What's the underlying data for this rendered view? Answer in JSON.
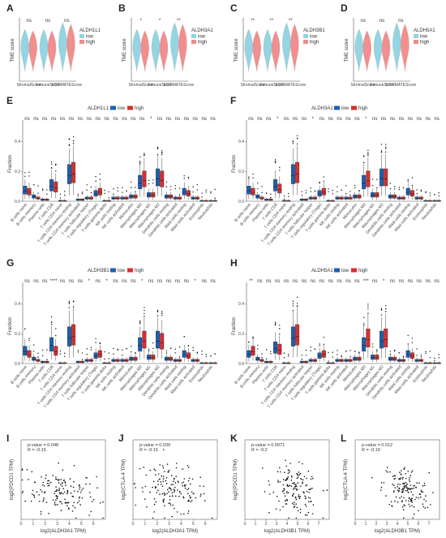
{
  "panel_letters": [
    "A",
    "B",
    "C",
    "D",
    "E",
    "F",
    "G",
    "H",
    "I",
    "J",
    "K",
    "L"
  ],
  "colors": {
    "low": "#8fd3e0",
    "high": "#f08a8a",
    "box_low": "#1f5fb0",
    "box_high": "#d62f2f",
    "point": "#111111"
  },
  "chart_data": [
    {
      "panel": "A",
      "type": "violin",
      "gene": "ALDH1L1",
      "ylabel": "TME score",
      "legend_title": "ALDH1L1",
      "legend_items": [
        "low",
        "high"
      ],
      "categories": [
        "StromalScore",
        "ImmuneScore",
        "ESTIMATEScore"
      ],
      "significance": [
        "ns",
        "ns",
        "ns"
      ]
    },
    {
      "panel": "B",
      "type": "violin",
      "gene": "ALDH3A1",
      "ylabel": "TME score",
      "legend_title": "ALDH3A1",
      "legend_items": [
        "low",
        "high"
      ],
      "categories": [
        "StromalScore",
        "ImmuneScore",
        "ESTIMATEScore"
      ],
      "significance": [
        "*",
        "*",
        "**"
      ]
    },
    {
      "panel": "C",
      "type": "violin",
      "gene": "ALDH3B1",
      "ylabel": "TME score",
      "legend_title": "ALDH3B1",
      "legend_items": [
        "low",
        "high"
      ],
      "categories": [
        "StromalScore",
        "ImmuneScore",
        "ESTIMATEScore"
      ],
      "significance": [
        "**",
        "**",
        "**"
      ]
    },
    {
      "panel": "D",
      "type": "violin",
      "gene": "ALDH5A1",
      "ylabel": "TME score",
      "legend_title": "ALDH5A1",
      "legend_items": [
        "low",
        "high"
      ],
      "categories": [
        "StromalScore",
        "ImmuneScore",
        "ESTIMATEScore"
      ],
      "significance": [
        "ns",
        "ns",
        "ns"
      ]
    },
    {
      "panel": "E",
      "type": "boxplot",
      "legend_title": "ALDH1L1",
      "legend_items": [
        "low",
        "high"
      ],
      "ylabel": "Fraction",
      "ylim": [
        0,
        0.5
      ],
      "yticks": [
        "0.0",
        "0.2",
        "0.4"
      ],
      "categories": [
        "B cells naive",
        "B cells memory",
        "Plasma cells",
        "T cells CD8",
        "T cells CD4 naive",
        "T cells CD4 memory resting",
        "T cells CD4 memory activated",
        "T cells follicular helper",
        "T cells regulatory (Tregs)",
        "T cells gamma delta",
        "NK cells resting",
        "NK cells activated",
        "Monocytes",
        "Macrophages M0",
        "Macrophages M1",
        "Macrophages M2",
        "Dendritic cells resting",
        "Dendritic cells activated",
        "Mast cells resting",
        "Mast cells activated",
        "Eosinophils",
        "Neutrophils"
      ],
      "significance": [
        "ns",
        "ns",
        "ns",
        "ns",
        "ns",
        "ns",
        "ns",
        "ns",
        "ns",
        "ns",
        "ns",
        "ns",
        "ns",
        "ns",
        "*",
        "ns",
        "ns",
        "ns",
        "ns",
        "ns",
        "ns",
        "ns"
      ],
      "medians_low": [
        0.07,
        0.03,
        0.01,
        0.1,
        0.0,
        0.17,
        0.01,
        0.02,
        0.05,
        0.0,
        0.02,
        0.02,
        0.03,
        0.12,
        0.04,
        0.15,
        0.03,
        0.02,
        0.06,
        0.02,
        0.0,
        0.0
      ],
      "medians_high": [
        0.06,
        0.02,
        0.01,
        0.09,
        0.0,
        0.18,
        0.01,
        0.02,
        0.06,
        0.0,
        0.02,
        0.02,
        0.03,
        0.14,
        0.04,
        0.14,
        0.03,
        0.02,
        0.05,
        0.02,
        0.0,
        0.0
      ]
    },
    {
      "panel": "F",
      "type": "boxplot",
      "legend_title": "ALDH3A1",
      "legend_items": [
        "low",
        "high"
      ],
      "ylabel": "Fraction",
      "ylim": [
        0,
        0.5
      ],
      "yticks": [
        "0.0",
        "0.2",
        "0.4"
      ],
      "categories": [
        "B cells naive",
        "B cells memory",
        "Plasma cells",
        "T cells CD8",
        "T cells CD4 naive",
        "T cells CD4 memory resting",
        "T cells CD4 memory activated",
        "T cells follicular helper",
        "T cells regulatory (Tregs)",
        "T cells gamma delta",
        "NK cells resting",
        "NK cells activated",
        "Monocytes",
        "Macrophages M0",
        "Macrophages M1",
        "Macrophages M2",
        "Dendritic cells resting",
        "Dendritic cells activated",
        "Mast cells resting",
        "Mast cells activated",
        "Eosinophils",
        "Neutrophils"
      ],
      "significance": [
        "ns",
        "ns",
        "ns",
        "*",
        "ns",
        "ns",
        "ns",
        "*",
        "ns",
        "ns",
        "ns",
        "ns",
        "ns",
        "*",
        "ns",
        "ns",
        "ns",
        "ns",
        "ns",
        "ns",
        "ns",
        "ns"
      ],
      "medians_low": [
        0.07,
        0.03,
        0.01,
        0.1,
        0.0,
        0.17,
        0.01,
        0.02,
        0.05,
        0.0,
        0.02,
        0.02,
        0.03,
        0.12,
        0.04,
        0.15,
        0.03,
        0.02,
        0.06,
        0.02,
        0.0,
        0.0
      ],
      "medians_high": [
        0.06,
        0.02,
        0.01,
        0.08,
        0.0,
        0.18,
        0.01,
        0.02,
        0.06,
        0.0,
        0.02,
        0.02,
        0.03,
        0.14,
        0.04,
        0.15,
        0.03,
        0.02,
        0.05,
        0.02,
        0.0,
        0.0
      ]
    },
    {
      "panel": "G",
      "type": "boxplot",
      "legend_title": "ALDH3B1",
      "legend_items": [
        "low",
        "high"
      ],
      "ylabel": "Fraction",
      "ylim": [
        0,
        0.5
      ],
      "yticks": [
        "0.0",
        "0.2",
        "0.4"
      ],
      "categories": [
        "B cells naive",
        "B cells memory",
        "Plasma cells",
        "T cells CD8",
        "T cells CD4 naive",
        "T cells CD4 memory resting",
        "T cells CD4 memory activated",
        "T cells follicular helper",
        "T cells regulatory (Tregs)",
        "T cells gamma delta",
        "NK cells resting",
        "NK cells activated",
        "Monocytes",
        "Macrophages M0",
        "Macrophages M1",
        "Macrophages M2",
        "Dendritic cells resting",
        "Dendritic cells activated",
        "Mast cells resting",
        "Mast cells activated",
        "Eosinophils",
        "Neutrophils"
      ],
      "significance": [
        "ns",
        "ns",
        "ns",
        "****",
        "ns",
        "ns",
        "ns",
        "*",
        "ns",
        "*",
        "ns",
        "ns",
        "ns",
        "*",
        "ns",
        "ns",
        "ns",
        "ns",
        "ns",
        "*",
        "ns",
        "ns"
      ],
      "medians_low": [
        0.08,
        0.03,
        0.01,
        0.12,
        0.0,
        0.17,
        0.01,
        0.02,
        0.05,
        0.0,
        0.02,
        0.02,
        0.03,
        0.12,
        0.04,
        0.15,
        0.03,
        0.02,
        0.06,
        0.02,
        0.0,
        0.0
      ],
      "medians_high": [
        0.06,
        0.02,
        0.01,
        0.08,
        0.0,
        0.18,
        0.01,
        0.02,
        0.06,
        0.0,
        0.02,
        0.02,
        0.03,
        0.15,
        0.04,
        0.14,
        0.03,
        0.02,
        0.05,
        0.02,
        0.0,
        0.0
      ]
    },
    {
      "panel": "H",
      "type": "boxplot",
      "legend_title": "ALDH5A1",
      "legend_items": [
        "low",
        "high"
      ],
      "ylabel": "Fraction",
      "ylim": [
        0,
        0.5
      ],
      "yticks": [
        "0.0",
        "0.2",
        "0.4"
      ],
      "categories": [
        "B cells naive",
        "B cells memory",
        "Plasma cells",
        "T cells CD8",
        "T cells CD4 naive",
        "T cells CD4 memory resting",
        "T cells CD4 memory activated",
        "T cells follicular helper",
        "T cells regulatory (Tregs)",
        "T cells gamma delta",
        "NK cells resting",
        "NK cells activated",
        "Monocytes",
        "Macrophages M0",
        "Macrophages M1",
        "Macrophages M2",
        "Dendritic cells resting",
        "Dendritic cells activated",
        "Mast cells resting",
        "Mast cells activated",
        "Eosinophils",
        "Neutrophils"
      ],
      "significance": [
        "**",
        "ns",
        "ns",
        "ns",
        "ns",
        "ns",
        "ns",
        "ns",
        "ns",
        "ns",
        "ns",
        "ns",
        "ns",
        "***",
        "ns",
        "*",
        "ns",
        "ns",
        "ns",
        "ns",
        "ns",
        "ns"
      ],
      "medians_low": [
        0.06,
        0.03,
        0.01,
        0.1,
        0.0,
        0.17,
        0.01,
        0.02,
        0.05,
        0.0,
        0.02,
        0.02,
        0.03,
        0.12,
        0.04,
        0.15,
        0.03,
        0.02,
        0.06,
        0.02,
        0.0,
        0.0
      ],
      "medians_high": [
        0.08,
        0.02,
        0.01,
        0.09,
        0.0,
        0.18,
        0.01,
        0.02,
        0.06,
        0.0,
        0.02,
        0.02,
        0.03,
        0.16,
        0.04,
        0.16,
        0.03,
        0.02,
        0.05,
        0.02,
        0.0,
        0.0
      ]
    },
    {
      "panel": "I",
      "type": "scatter",
      "xlabel": "log2(ALDH3A1 TPM)",
      "ylabel": "log2(PDCD1 TPM)",
      "stat_p": "p-value = 0.048",
      "stat_r": "R = -0.15",
      "xlim": [
        0,
        7
      ],
      "ylim": [
        0,
        6
      ],
      "xticks": [
        "0",
        "1",
        "2",
        "3",
        "4",
        "5",
        "6"
      ]
    },
    {
      "panel": "J",
      "type": "scatter",
      "xlabel": "log2(ALDH3A1 TPM)",
      "ylabel": "log2(CTLA-4 TPM)",
      "stat_p": "p-value = 0.039",
      "stat_r": "R = -0.15",
      "xlim": [
        0,
        7
      ],
      "ylim": [
        0,
        6
      ],
      "xticks": [
        "0",
        "1",
        "2",
        "3",
        "4",
        "5",
        "6"
      ]
    },
    {
      "panel": "K",
      "type": "scatter",
      "xlabel": "log2(ALDH3B1 TPM)",
      "ylabel": "log2(PDCD1 TPM)",
      "stat_p": "p-value = 0.0071",
      "stat_r": "R = -0.2",
      "xlim": [
        0,
        8
      ],
      "ylim": [
        0,
        6
      ],
      "xticks": [
        "0",
        "1",
        "2",
        "3",
        "4",
        "5",
        "6",
        "7"
      ]
    },
    {
      "panel": "L",
      "type": "scatter",
      "xlabel": "log2(ALDH3B1 TPM)",
      "ylabel": "log2(CTLA-4 TPM)",
      "stat_p": "p-value = 0.012",
      "stat_r": "R = -0.19",
      "xlim": [
        0,
        8
      ],
      "ylim": [
        0,
        6
      ],
      "xticks": [
        "0",
        "1",
        "2",
        "3",
        "4",
        "5",
        "6",
        "7"
      ]
    }
  ]
}
